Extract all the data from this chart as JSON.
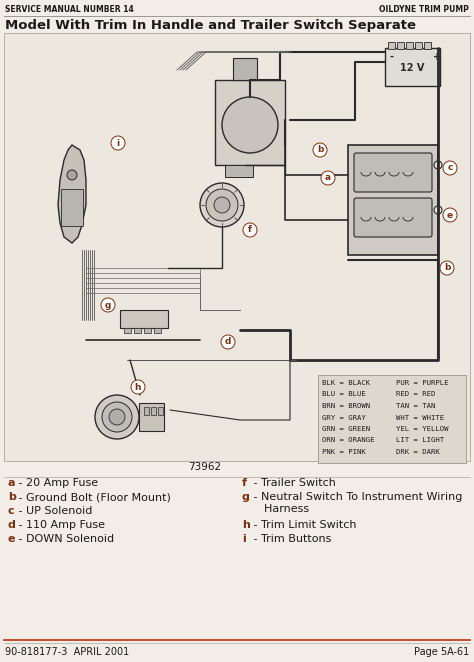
{
  "page_bg": "#f2ede6",
  "diag_bg": "#ece7df",
  "text_color": "#1a1a1a",
  "brown_label": "#7a3010",
  "header_line_color": "#999990",
  "footer_line_color": "#bb3311",
  "wire_dark": "#2a2a2a",
  "wire_box_bg": "#ddd8ce",
  "title_top_left": "SERVICE MANUAL NUMBER 14",
  "title_top_right": "OILDYNE TRIM PUMP",
  "main_title": "Model With Trim In Handle and Trailer Switch Separate",
  "footer_left": "90-818177-3  APRIL 2001",
  "footer_right": "Page 5A-61",
  "diagram_label": "73962",
  "legend_left": [
    [
      "a",
      " - 20 Amp Fuse"
    ],
    [
      "b",
      " - Ground Bolt (Floor Mount)"
    ],
    [
      "c",
      " - UP Solenoid"
    ],
    [
      "d",
      " - 110 Amp Fuse"
    ],
    [
      "e",
      " - DOWN Solenoid"
    ]
  ],
  "legend_right": [
    [
      "f",
      " - Trailer Switch"
    ],
    [
      "g",
      " - Neutral Switch To Instrument Wiring\n    Harness"
    ],
    [
      "h",
      " - Trim Limit Switch"
    ],
    [
      "i",
      " - Trim Buttons"
    ]
  ],
  "wire_legend": [
    [
      "BLK",
      "BLACK"
    ],
    [
      "BLU",
      "BLUE"
    ],
    [
      "BRN",
      "BROWN"
    ],
    [
      "GRY",
      "GRAY"
    ],
    [
      "GRN",
      "GREEN"
    ],
    [
      "ORN",
      "ORANGE"
    ],
    [
      "PNK",
      "PINK"
    ],
    [
      "PUR",
      "PURPLE"
    ],
    [
      "RED",
      "RED"
    ],
    [
      "TAN",
      "TAN"
    ],
    [
      "WHT",
      "WHITE"
    ],
    [
      "YEL",
      "YELLOW"
    ],
    [
      "LIT",
      "LIGHT"
    ],
    [
      "DRK",
      "DARK"
    ]
  ]
}
